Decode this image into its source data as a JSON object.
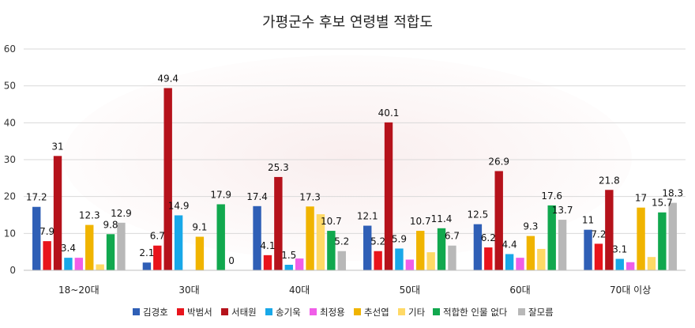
{
  "chart_data": {
    "type": "bar",
    "title": "가평군수 후보 연령별 적합도",
    "categories": [
      "18~20대",
      "30대",
      "40대",
      "50대",
      "60대",
      "70대 이상"
    ],
    "ylim": [
      0,
      60
    ],
    "yticks": [
      "0",
      "10",
      "20",
      "30",
      "40",
      "50",
      "60"
    ],
    "grid": true,
    "legend_position": "bottom",
    "series": [
      {
        "name": "김경호",
        "color": "#2f5fb6",
        "values": [
          17.2,
          2.1,
          17.4,
          12.1,
          12.5,
          11
        ]
      },
      {
        "name": "박범서",
        "color": "#e8141c",
        "values": [
          7.9,
          6.7,
          4.1,
          5.2,
          6.2,
          7.2
        ]
      },
      {
        "name": "서태원",
        "color": "#b5121b",
        "values": [
          31,
          49.4,
          25.3,
          40.1,
          26.9,
          21.8
        ]
      },
      {
        "name": "송기욱",
        "color": "#18a8e8",
        "values": [
          3.4,
          14.9,
          1.5,
          5.9,
          4.4,
          3.1
        ]
      },
      {
        "name": "최정용",
        "color": "#f05ee8",
        "values": [
          3.4,
          null,
          3.2,
          2.9,
          3.4,
          2.2
        ]
      },
      {
        "name": "추선엽",
        "color": "#f0b400",
        "values": [
          12.3,
          9.1,
          17.3,
          10.7,
          9.3,
          17
        ]
      },
      {
        "name": "기타",
        "color": "#ffd966",
        "values": [
          1.6,
          null,
          15.2,
          4.9,
          5.8,
          3.6
        ]
      },
      {
        "name": "적합한 인물 없다",
        "color": "#11a84e",
        "values": [
          9.8,
          17.9,
          10.7,
          11.4,
          17.6,
          15.7
        ]
      },
      {
        "name": "잘모름",
        "color": "#b8b8b8",
        "values": [
          12.9,
          0,
          5.2,
          6.7,
          13.7,
          18.3
        ]
      }
    ],
    "data_labels": [
      [
        "17.2",
        "7.9",
        "31",
        "3.4",
        "",
        "12.3",
        "",
        "9.8",
        "12.9"
      ],
      [
        "2.1",
        "6.7",
        "49.4",
        "14.9",
        "",
        "9.1",
        "",
        "17.9",
        "0"
      ],
      [
        "17.4",
        "4.1",
        "25.3",
        "1.5",
        "",
        "17.3",
        "",
        "10.7",
        "5.2"
      ],
      [
        "12.1",
        "5.2",
        "40.1",
        "5.9",
        "",
        "10.7",
        "",
        "11.4",
        "6.7"
      ],
      [
        "12.5",
        "6.2",
        "26.9",
        "4.4",
        "",
        "9.3",
        "",
        "17.6",
        "13.7"
      ],
      [
        "11",
        "7.2",
        "21.8",
        "3.1",
        "",
        "17",
        "",
        "15.7",
        "18.3"
      ]
    ]
  }
}
